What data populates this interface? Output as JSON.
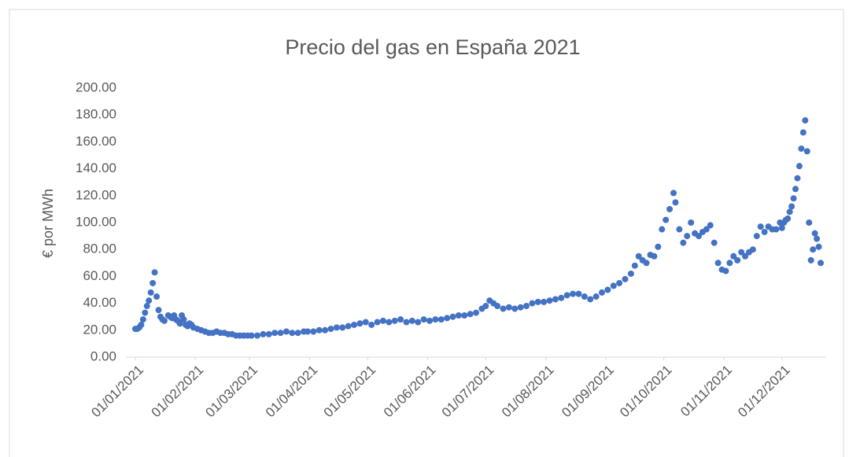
{
  "chart_data": {
    "type": "scatter",
    "title": "Precio del gas en España 2021",
    "ylabel": "€ por MWh",
    "series": [
      {
        "name": "Precio",
        "color": "#4472c4",
        "x": [
          "01/01/2021",
          "02/01/2021",
          "03/01/2021",
          "04/01/2021",
          "05/01/2021",
          "06/01/2021",
          "07/01/2021",
          "08/01/2021",
          "09/01/2021",
          "10/01/2021",
          "11/01/2021",
          "12/01/2021",
          "13/01/2021",
          "14/01/2021",
          "15/01/2021",
          "16/01/2021",
          "18/01/2021",
          "19/01/2021",
          "20/01/2021",
          "21/01/2021",
          "22/01/2021",
          "23/01/2021",
          "24/01/2021",
          "25/01/2021",
          "26/01/2021",
          "27/01/2021",
          "28/01/2021",
          "29/01/2021",
          "30/01/2021",
          "31/01/2021",
          "02/02/2021",
          "04/02/2021",
          "06/02/2021",
          "08/02/2021",
          "10/02/2021",
          "12/02/2021",
          "14/02/2021",
          "16/02/2021",
          "18/02/2021",
          "20/02/2021",
          "22/02/2021",
          "24/02/2021",
          "26/02/2021",
          "28/02/2021",
          "02/03/2021",
          "05/03/2021",
          "08/03/2021",
          "11/03/2021",
          "14/03/2021",
          "17/03/2021",
          "20/03/2021",
          "23/03/2021",
          "26/03/2021",
          "29/03/2021",
          "31/03/2021",
          "03/04/2021",
          "06/04/2021",
          "09/04/2021",
          "12/04/2021",
          "15/04/2021",
          "18/04/2021",
          "21/04/2021",
          "24/04/2021",
          "27/04/2021",
          "30/04/2021",
          "03/05/2021",
          "06/05/2021",
          "09/05/2021",
          "12/05/2021",
          "15/05/2021",
          "18/05/2021",
          "21/05/2021",
          "24/05/2021",
          "27/05/2021",
          "30/05/2021",
          "02/06/2021",
          "05/06/2021",
          "08/06/2021",
          "11/06/2021",
          "14/06/2021",
          "17/06/2021",
          "20/06/2021",
          "23/06/2021",
          "26/06/2021",
          "29/06/2021",
          "01/07/2021",
          "03/07/2021",
          "05/07/2021",
          "07/07/2021",
          "10/07/2021",
          "13/07/2021",
          "16/07/2021",
          "19/07/2021",
          "22/07/2021",
          "25/07/2021",
          "28/07/2021",
          "31/07/2021",
          "03/08/2021",
          "06/08/2021",
          "09/08/2021",
          "12/08/2021",
          "15/08/2021",
          "18/08/2021",
          "21/08/2021",
          "24/08/2021",
          "27/08/2021",
          "30/08/2021",
          "02/09/2021",
          "05/09/2021",
          "08/09/2021",
          "11/09/2021",
          "14/09/2021",
          "16/09/2021",
          "18/09/2021",
          "20/09/2021",
          "22/09/2021",
          "24/09/2021",
          "26/09/2021",
          "28/09/2021",
          "30/09/2021",
          "02/10/2021",
          "04/10/2021",
          "06/10/2021",
          "07/10/2021",
          "09/10/2021",
          "11/10/2021",
          "13/10/2021",
          "15/10/2021",
          "17/10/2021",
          "19/10/2021",
          "21/10/2021",
          "23/10/2021",
          "25/10/2021",
          "27/10/2021",
          "29/10/2021",
          "31/10/2021",
          "02/11/2021",
          "04/11/2021",
          "06/11/2021",
          "08/11/2021",
          "10/11/2021",
          "12/11/2021",
          "14/11/2021",
          "16/11/2021",
          "18/11/2021",
          "20/11/2021",
          "22/11/2021",
          "24/11/2021",
          "26/11/2021",
          "28/11/2021",
          "30/11/2021",
          "01/12/2021",
          "02/12/2021",
          "03/12/2021",
          "04/12/2021",
          "05/12/2021",
          "06/12/2021",
          "07/12/2021",
          "08/12/2021",
          "09/12/2021",
          "10/12/2021",
          "11/12/2021",
          "12/12/2021",
          "13/12/2021",
          "14/12/2021",
          "15/12/2021",
          "16/12/2021",
          "17/12/2021",
          "18/12/2021",
          "19/12/2021",
          "20/12/2021",
          "21/12/2021"
        ],
        "values": [
          21,
          21,
          22,
          24,
          28,
          33,
          38,
          42,
          48,
          55,
          63,
          45,
          35,
          30,
          28,
          27,
          31,
          30,
          29,
          31,
          28,
          27,
          25,
          31,
          28,
          24,
          23,
          25,
          24,
          22,
          21,
          20,
          19,
          18,
          18,
          19,
          18,
          18,
          17,
          17,
          16,
          16,
          16,
          16,
          16,
          16,
          17,
          17,
          18,
          18,
          19,
          18,
          18,
          19,
          19,
          19,
          20,
          20,
          21,
          22,
          22,
          23,
          24,
          25,
          26,
          24,
          26,
          27,
          26,
          27,
          28,
          26,
          27,
          26,
          28,
          27,
          28,
          28,
          29,
          30,
          31,
          31,
          32,
          33,
          36,
          38,
          42,
          40,
          38,
          36,
          37,
          36,
          37,
          38,
          40,
          41,
          41,
          42,
          43,
          44,
          46,
          47,
          47,
          45,
          43,
          45,
          48,
          50,
          53,
          55,
          58,
          62,
          68,
          75,
          72,
          70,
          76,
          75,
          82,
          95,
          102,
          110,
          122,
          115,
          95,
          85,
          90,
          100,
          92,
          90,
          93,
          95,
          98,
          85,
          70,
          65,
          64,
          70,
          75,
          72,
          78,
          75,
          78,
          80,
          90,
          97,
          93,
          97,
          95,
          95,
          100,
          96,
          100,
          102,
          103,
          108,
          112,
          118,
          125,
          133,
          142,
          155,
          167,
          176,
          153,
          100,
          72,
          80,
          92,
          88,
          82,
          70
        ]
      }
    ],
    "xlim": [
      "01/01/2021",
      "21/12/2021"
    ],
    "xticks": [
      "01/01/2021",
      "01/02/2021",
      "01/03/2021",
      "01/04/2021",
      "01/05/2021",
      "01/06/2021",
      "01/07/2021",
      "01/08/2021",
      "01/09/2021",
      "01/10/2021",
      "01/11/2021",
      "01/12/2021"
    ],
    "ylim": [
      0,
      200
    ],
    "yticks": [
      {
        "value": 0,
        "label": "0.00"
      },
      {
        "value": 20,
        "label": "20.00"
      },
      {
        "value": 40,
        "label": "40.00"
      },
      {
        "value": 60,
        "label": "60.00"
      },
      {
        "value": 80,
        "label": "80.00"
      },
      {
        "value": 100,
        "label": "100.00"
      },
      {
        "value": 120,
        "label": "120.00"
      },
      {
        "value": 140,
        "label": "140.00"
      },
      {
        "value": 160,
        "label": "160.00"
      },
      {
        "value": 180,
        "label": "180.00"
      },
      {
        "value": 200,
        "label": "200.00"
      }
    ],
    "grid": false
  }
}
